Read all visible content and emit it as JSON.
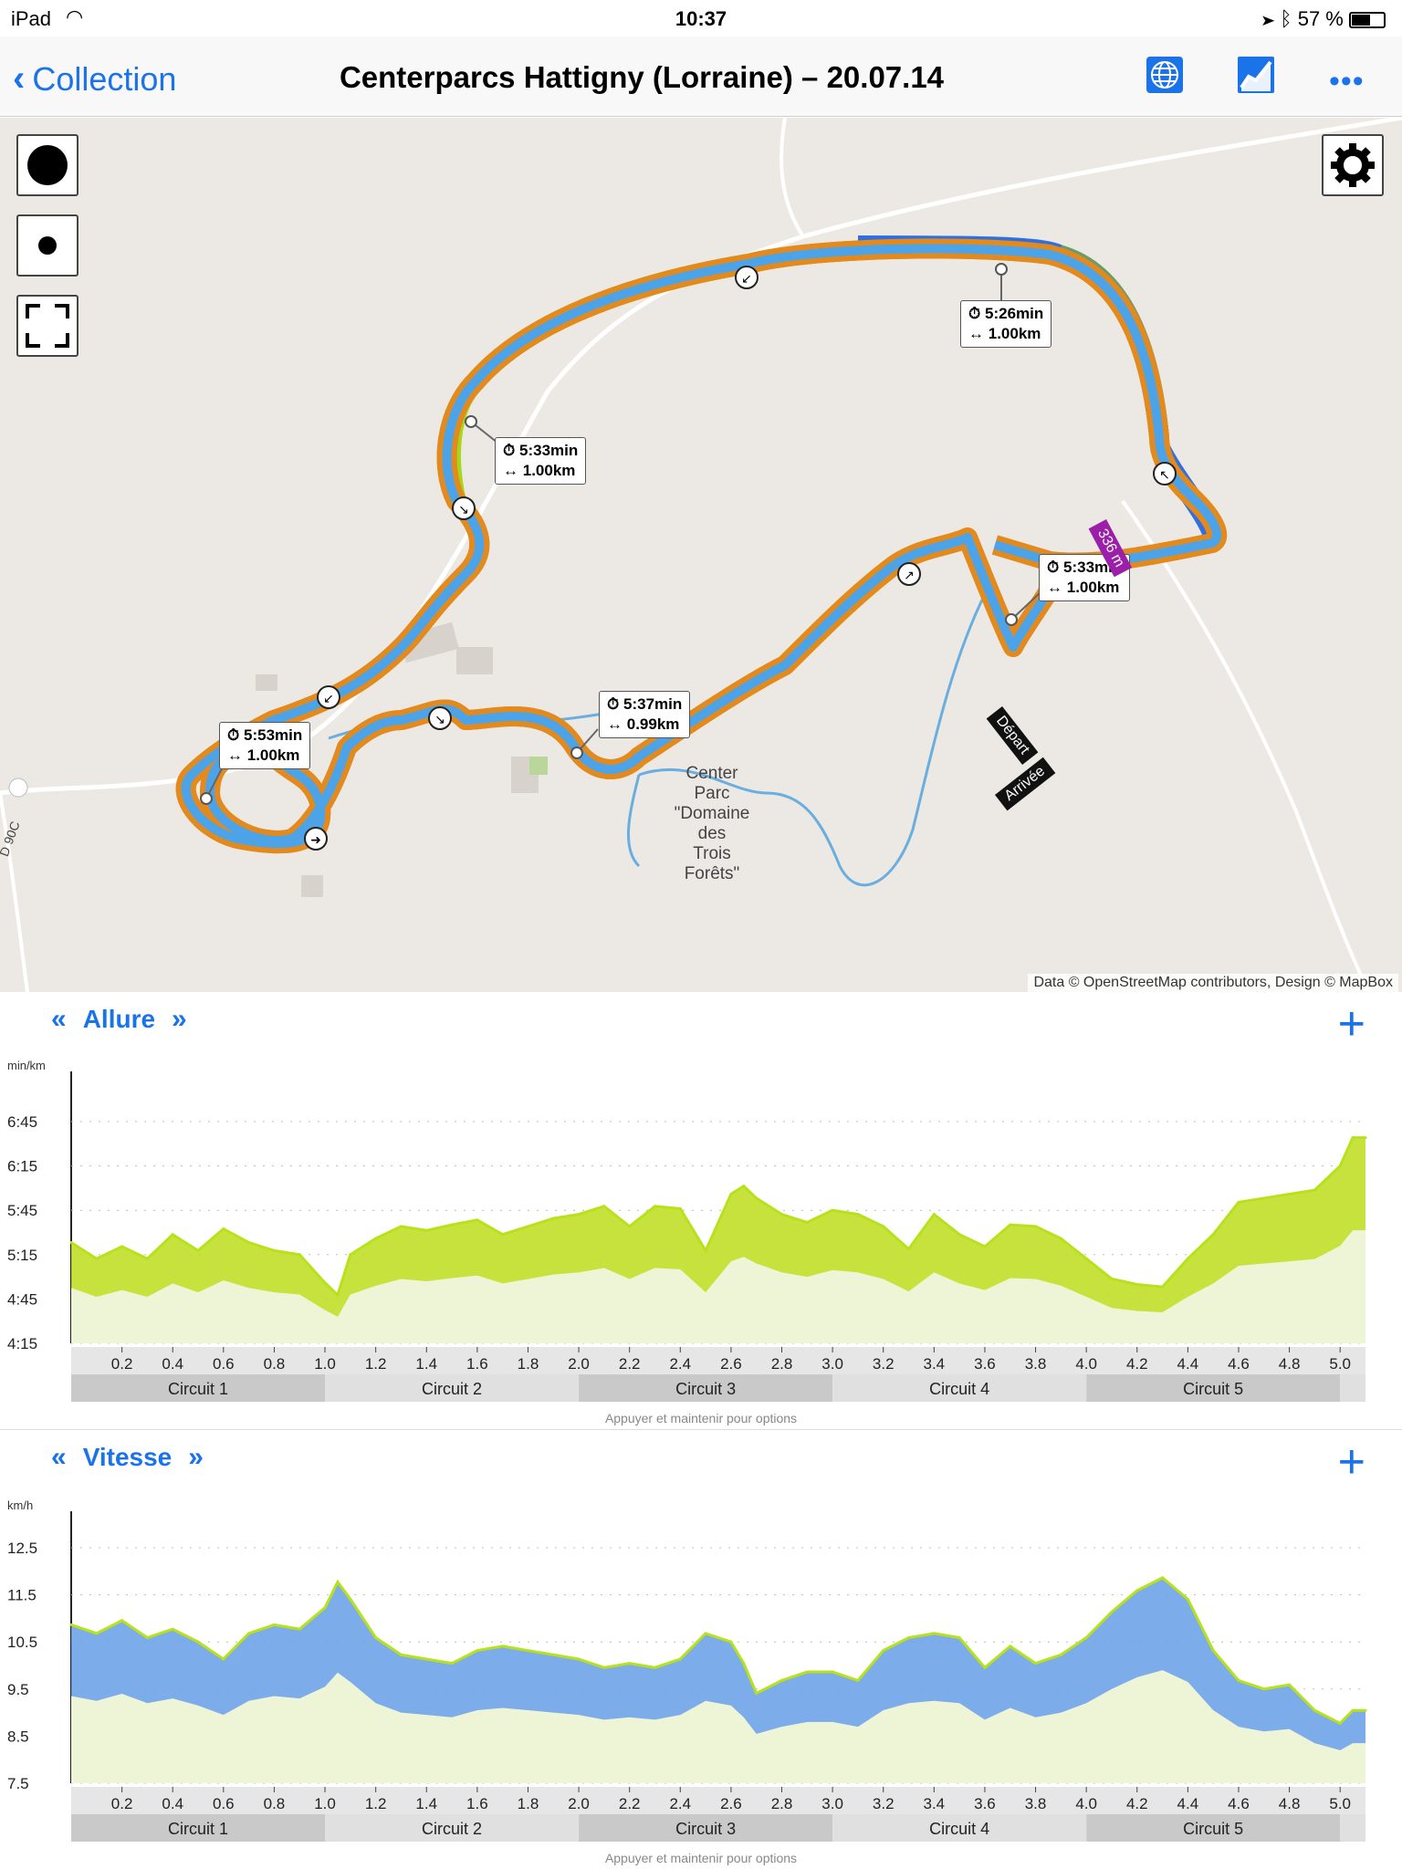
{
  "status": {
    "device": "iPad",
    "time": "10:37",
    "battery": "57 %"
  },
  "nav": {
    "back_label": "Collection",
    "title": "Centerparcs Hattigny (Lorraine) – 20.07.14"
  },
  "map": {
    "attribution": "Data © OpenStreetMap contributors, Design © MapBox",
    "place_label": [
      "Center",
      "Parc",
      "\"Domaine",
      "des",
      "Trois",
      "Forêts\""
    ],
    "road_label": "D 90C",
    "distance_badge": "336 m",
    "start_label": "Départ",
    "end_label": "Arrivée",
    "splits": [
      {
        "time": "5:26min",
        "dist": "1.00km"
      },
      {
        "time": "5:33min",
        "dist": "1.00km"
      },
      {
        "time": "5:33min",
        "dist": "1.00km"
      },
      {
        "time": "5:37min",
        "dist": "0.99km"
      },
      {
        "time": "5:53min",
        "dist": "1.00km"
      }
    ]
  },
  "charts": {
    "hint": "Appuyer et maintenir pour options",
    "laps": [
      "Circuit 1",
      "Circuit 2",
      "Circuit 3",
      "Circuit 4",
      "Circuit 5"
    ],
    "x_ticks": [
      "0.2",
      "0.4",
      "0.6",
      "0.8",
      "1.0",
      "1.2",
      "1.4",
      "1.6",
      "1.8",
      "2.0",
      "2.2",
      "2.4",
      "2.6",
      "2.8",
      "3.0",
      "3.2",
      "3.4",
      "3.6",
      "3.8",
      "4.0",
      "4.2",
      "4.4",
      "4.6",
      "4.8",
      "5.0"
    ],
    "pace": {
      "title": "Allure",
      "unit": "min/km",
      "y_ticks": [
        "6:45",
        "6:15",
        "5:45",
        "5:15",
        "4:45",
        "4:15"
      ]
    },
    "speed": {
      "title": "Vitesse",
      "unit": "km/h",
      "y_ticks": [
        "12.5",
        "11.5",
        "10.5",
        "9.5",
        "8.5",
        "7.5"
      ]
    }
  },
  "chart_data": [
    {
      "type": "area",
      "title": "Allure",
      "ylabel": "min/km",
      "xlabel": "",
      "y_unit": "min/km",
      "ylim": [
        4.25,
        7.0
      ],
      "xlim": [
        0,
        5.1
      ],
      "x": [
        0.0,
        0.1,
        0.2,
        0.3,
        0.4,
        0.5,
        0.6,
        0.7,
        0.8,
        0.9,
        1.0,
        1.05,
        1.1,
        1.2,
        1.3,
        1.4,
        1.5,
        1.6,
        1.7,
        1.8,
        1.9,
        2.0,
        2.1,
        2.2,
        2.3,
        2.4,
        2.5,
        2.6,
        2.65,
        2.7,
        2.8,
        2.9,
        3.0,
        3.1,
        3.2,
        3.3,
        3.4,
        3.5,
        3.6,
        3.7,
        3.8,
        3.9,
        4.0,
        4.1,
        4.2,
        4.3,
        4.4,
        4.5,
        4.6,
        4.7,
        4.8,
        4.9,
        5.0,
        5.05,
        5.1
      ],
      "series": [
        {
          "name": "",
          "values": [
            5.5,
            5.3,
            5.45,
            5.3,
            5.6,
            5.4,
            5.67,
            5.5,
            5.4,
            5.35,
            5.0,
            4.85,
            5.35,
            5.55,
            5.7,
            5.65,
            5.72,
            5.78,
            5.6,
            5.7,
            5.8,
            5.85,
            5.95,
            5.7,
            5.95,
            5.92,
            5.4,
            6.1,
            6.2,
            6.05,
            5.85,
            5.75,
            5.9,
            5.85,
            5.7,
            5.42,
            5.85,
            5.6,
            5.45,
            5.72,
            5.7,
            5.55,
            5.3,
            5.05,
            4.98,
            4.95,
            5.3,
            5.6,
            6.0,
            6.05,
            6.1,
            6.15,
            6.45,
            6.8,
            6.8
          ]
        }
      ]
    },
    {
      "type": "area",
      "title": "Vitesse",
      "ylabel": "km/h",
      "xlabel": "",
      "y_unit": "km/h",
      "ylim": [
        7.5,
        13.0
      ],
      "xlim": [
        0,
        5.1
      ],
      "x": [
        0.0,
        0.1,
        0.2,
        0.3,
        0.4,
        0.5,
        0.6,
        0.7,
        0.8,
        0.9,
        1.0,
        1.05,
        1.1,
        1.2,
        1.3,
        1.4,
        1.5,
        1.6,
        1.7,
        1.8,
        1.9,
        2.0,
        2.1,
        2.2,
        2.3,
        2.4,
        2.5,
        2.6,
        2.65,
        2.7,
        2.8,
        2.9,
        3.0,
        3.1,
        3.2,
        3.3,
        3.4,
        3.5,
        3.6,
        3.7,
        3.8,
        3.9,
        4.0,
        4.1,
        4.2,
        4.3,
        4.4,
        4.5,
        4.6,
        4.7,
        4.8,
        4.9,
        5.0,
        5.05,
        5.1
      ],
      "series": [
        {
          "name": "",
          "values": [
            11.2,
            11.0,
            11.3,
            10.9,
            11.1,
            10.8,
            10.4,
            11.0,
            11.2,
            11.1,
            11.6,
            12.2,
            11.8,
            10.9,
            10.5,
            10.4,
            10.3,
            10.6,
            10.7,
            10.6,
            10.5,
            10.4,
            10.2,
            10.3,
            10.2,
            10.4,
            11.0,
            10.8,
            10.3,
            9.6,
            9.9,
            10.1,
            10.1,
            9.9,
            10.6,
            10.9,
            11.0,
            10.9,
            10.2,
            10.7,
            10.3,
            10.5,
            10.9,
            11.5,
            12.0,
            12.3,
            11.8,
            10.6,
            9.9,
            9.7,
            9.8,
            9.2,
            8.9,
            9.2,
            9.2
          ]
        }
      ]
    }
  ]
}
